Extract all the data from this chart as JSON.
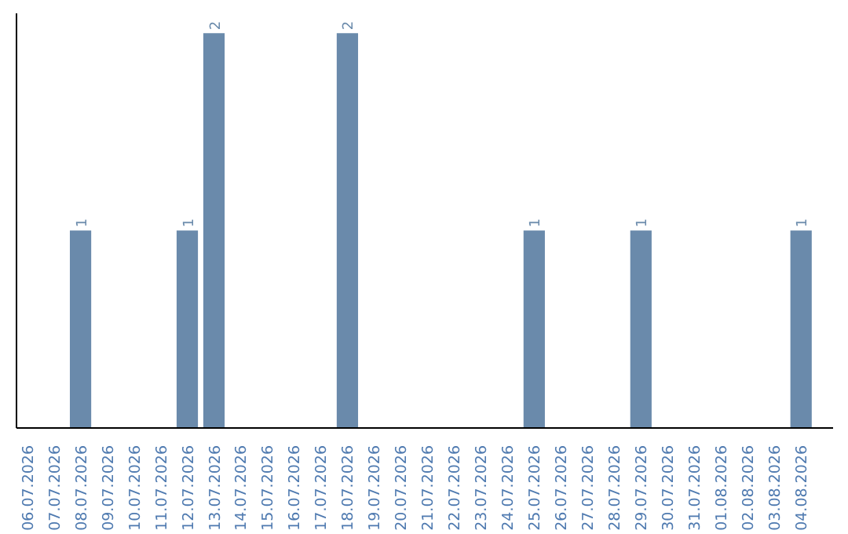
{
  "chart_data": {
    "type": "bar",
    "ylim": [
      0,
      2.1
    ],
    "value_labels": [
      null,
      null,
      "1",
      null,
      null,
      null,
      "1",
      "2",
      null,
      null,
      null,
      null,
      "2",
      null,
      null,
      null,
      null,
      null,
      null,
      "1",
      null,
      null,
      null,
      "1",
      null,
      null,
      null,
      null,
      null,
      "1"
    ],
    "categories": [
      "06.07.2026",
      "07.07.2026",
      "08.07.2026",
      "09.07.2026",
      "10.07.2026",
      "11.07.2026",
      "12.07.2026",
      "13.07.2026",
      "14.07.2026",
      "15.07.2026",
      "16.07.2026",
      "17.07.2026",
      "18.07.2026",
      "19.07.2026",
      "20.07.2026",
      "21.07.2026",
      "22.07.2026",
      "23.07.2026",
      "24.07.2026",
      "25.07.2026",
      "26.07.2026",
      "27.07.2026",
      "28.07.2026",
      "29.07.2026",
      "30.07.2026",
      "31.07.2026",
      "01.08.2026",
      "02.08.2026",
      "03.08.2026",
      "04.08.2026"
    ],
    "values": [
      0,
      0,
      1,
      0,
      0,
      0,
      1,
      2,
      0,
      0,
      0,
      0,
      2,
      0,
      0,
      0,
      0,
      0,
      0,
      1,
      0,
      0,
      0,
      1,
      0,
      0,
      0,
      0,
      0,
      1
    ],
    "color": "#6a8aab"
  }
}
